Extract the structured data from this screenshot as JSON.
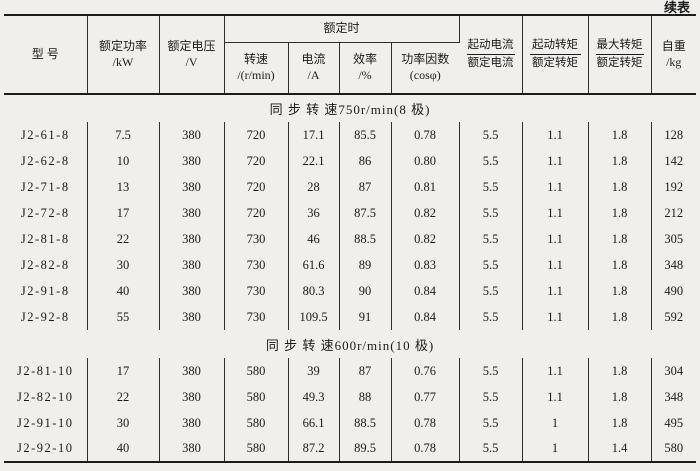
{
  "page": {
    "continued_label": "续表"
  },
  "table": {
    "header": {
      "model": "型  号",
      "rated_power": {
        "line1": "额定功率",
        "line2": "/kW"
      },
      "rated_voltage": {
        "line1": "额定电压",
        "line2": "/V"
      },
      "rated_group": "额定时",
      "speed": {
        "line1": "转速",
        "line2": "/(r/min)"
      },
      "current": {
        "line1": "电流",
        "line2": "/A"
      },
      "efficiency": {
        "line1": "效率",
        "line2": "/%"
      },
      "power_factor": {
        "line1": "功率因数",
        "line2": "(cosφ)"
      },
      "start_current_ratio": {
        "top": "起动电流",
        "bottom": "额定电流"
      },
      "start_torque_ratio": {
        "top": "起动转矩",
        "bottom": "额定转矩"
      },
      "max_torque_ratio": {
        "top": "最大转矩",
        "bottom": "额定转矩"
      },
      "weight": {
        "line1": "自重",
        "line2": "/kg"
      }
    },
    "column_keys": [
      "model",
      "rated-power",
      "rated-voltage",
      "speed",
      "current",
      "efficiency",
      "power-factor",
      "start-current-ratio",
      "start-torque-ratio",
      "max-torque-ratio",
      "weight"
    ],
    "sections": [
      {
        "title": "同 步 转 速750r/min(8 极)",
        "rows": [
          [
            "J2-61-8",
            "7.5",
            "380",
            "720",
            "17.1",
            "85.5",
            "0.78",
            "5.5",
            "1.1",
            "1.8",
            "128"
          ],
          [
            "J2-62-8",
            "10",
            "380",
            "720",
            "22.1",
            "86",
            "0.80",
            "5.5",
            "1.1",
            "1.8",
            "142"
          ],
          [
            "J2-71-8",
            "13",
            "380",
            "720",
            "28",
            "87",
            "0.81",
            "5.5",
            "1.1",
            "1.8",
            "192"
          ],
          [
            "J2-72-8",
            "17",
            "380",
            "720",
            "36",
            "87.5",
            "0.82",
            "5.5",
            "1.1",
            "1.8",
            "212"
          ],
          [
            "J2-81-8",
            "22",
            "380",
            "730",
            "46",
            "88.5",
            "0.82",
            "5.5",
            "1.1",
            "1.8",
            "305"
          ],
          [
            "J2-82-8",
            "30",
            "380",
            "730",
            "61.6",
            "89",
            "0.83",
            "5.5",
            "1.1",
            "1.8",
            "348"
          ],
          [
            "J2-91-8",
            "40",
            "380",
            "730",
            "80.3",
            "90",
            "0.84",
            "5.5",
            "1.1",
            "1.8",
            "490"
          ],
          [
            "J2-92-8",
            "55",
            "380",
            "730",
            "109.5",
            "91",
            "0.84",
            "5.5",
            "1.1",
            "1.8",
            "592"
          ]
        ]
      },
      {
        "title": "同 步 转 速600r/min(10 极)",
        "rows": [
          [
            "J2-81-10",
            "17",
            "380",
            "580",
            "39",
            "87",
            "0.76",
            "5.5",
            "1.1",
            "1.8",
            "304"
          ],
          [
            "J2-82-10",
            "22",
            "380",
            "580",
            "49.3",
            "88",
            "0.77",
            "5.5",
            "1.1",
            "1.8",
            "348"
          ],
          [
            "J2-91-10",
            "30",
            "380",
            "580",
            "66.1",
            "88.5",
            "0.78",
            "5.5",
            "1",
            "1.8",
            "495"
          ],
          [
            "J2-92-10",
            "40",
            "380",
            "580",
            "87.2",
            "89.5",
            "0.78",
            "5.5",
            "1",
            "1.4",
            "580"
          ]
        ]
      }
    ]
  }
}
